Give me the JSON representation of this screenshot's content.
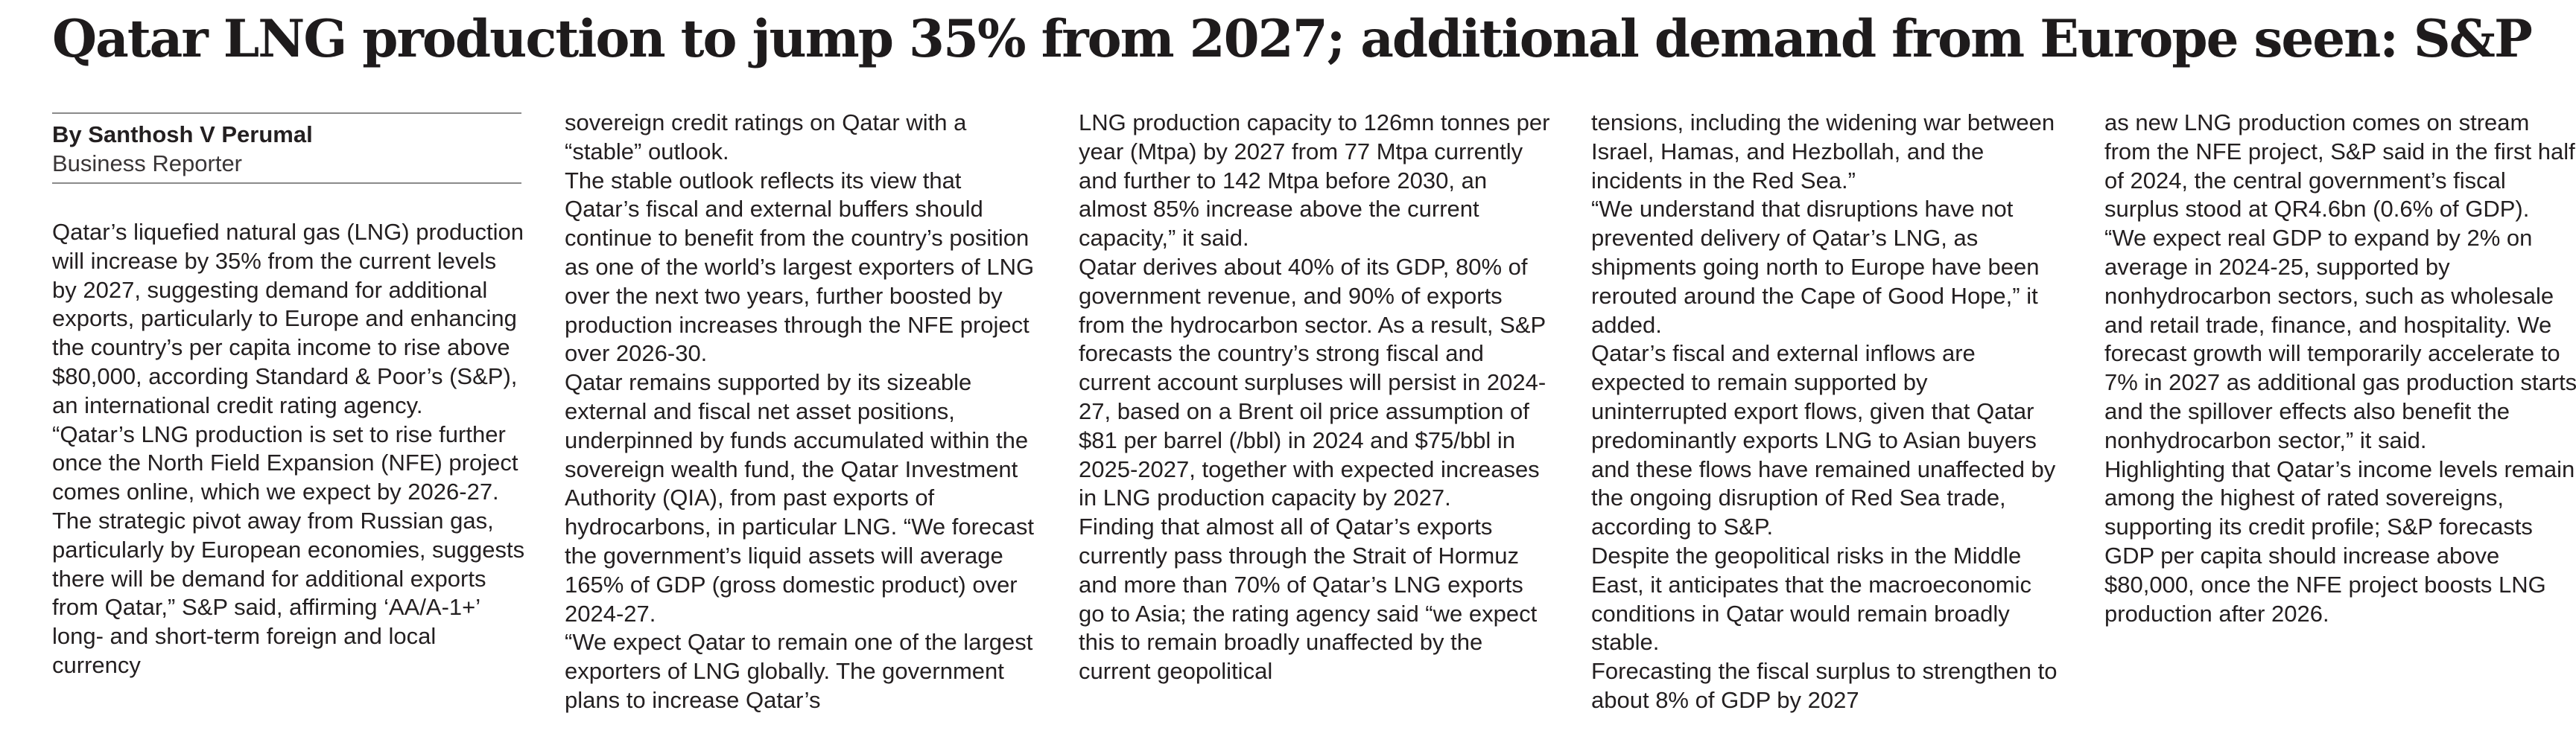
{
  "article": {
    "headline": "Qatar LNG production to jump 35% from 2027; additional demand from Europe seen: S&P",
    "byline": "By Santhosh V Perumal",
    "role": "Business Reporter",
    "columns": [
      [
        "Qatar’s liquefied natural gas (LNG) production will increase by 35% from the current levels by 2027, suggesting demand for additional exports, particularly to Europe and enhancing the country’s per capita income to rise above $80,000, according Standard & Poor’s (S&P), an international credit rating agency.",
        "“Qatar’s LNG production is set to rise further once the North Field Expansion (NFE) project comes online, which we expect by 2026-27. The strategic pivot away from Russian gas, particularly by European economies, suggests there will be demand for additional exports from Qatar,” S&P said, affirming ‘AA/A-1+’ long- and short-term foreign and local currency"
      ],
      [
        "sovereign credit ratings on Qatar with a “stable” outlook.",
        "The stable outlook reflects its view that Qatar’s fiscal and external buffers should continue to benefit from the country’s position as one of the world’s largest exporters of LNG over the next two years, further boosted by production increases through the NFE project over 2026-30.",
        "Qatar remains supported by its sizeable external and fiscal net asset positions, underpinned by funds accumulated within the sovereign wealth fund, the Qatar Investment Authority (QIA), from past exports of hydrocarbons, in particular LNG. “We forecast the government’s liquid assets will average 165% of GDP (gross domestic product) over 2024-27.",
        "“We expect Qatar to remain one of the largest exporters of LNG globally. The government plans to increase Qatar’s"
      ],
      [
        "LNG production capacity to 126mn tonnes per year (Mtpa) by 2027 from 77 Mtpa currently and further to 142 Mtpa before 2030, an almost 85% increase above the current capacity,” it said.",
        "Qatar derives about 40% of its GDP, 80% of government revenue, and 90% of exports from the hydrocarbon sector. As a result, S&P forecasts the country’s strong fiscal and current account surpluses will persist in 2024-27, based on a Brent oil price assumption of $81 per barrel (/bbl) in 2024 and $75/bbl in 2025-2027, together with expected increases in LNG production capacity by 2027.",
        "Finding that almost all of Qatar’s exports currently pass through the Strait of Hormuz and more than 70% of Qatar’s LNG exports go to Asia; the rating agency said “we expect this to remain broadly unaffected by the current geopolitical"
      ],
      [
        "tensions, including the widening war between Israel, Hamas, and Hezbollah, and the incidents in the Red Sea.”",
        "“We understand that disruptions have not prevented delivery of Qatar’s LNG, as shipments going north to Europe have been rerouted around the Cape of Good Hope,” it added.",
        "Qatar’s fiscal and external inflows are expected to remain supported by uninterrupted export flows, given that Qatar predominantly exports LNG to Asian buyers and these flows have remained unaffected by the ongoing disruption of Red Sea trade, according to S&P.",
        "Despite the geopolitical risks in the Middle East, it anticipates that the macroeconomic conditions in Qatar would remain broadly stable.",
        "Forecasting the fiscal surplus to strengthen to about 8% of GDP by 2027"
      ],
      [
        "as new LNG production comes on stream from the NFE project, S&P said in the first half of 2024, the central government’s fiscal surplus stood at QR4.6bn (0.6% of GDP).",
        "“We expect real GDP to expand by 2% on average in 2024-25, supported by nonhydrocarbon sectors, such as wholesale and retail trade, finance, and hospitality. We forecast growth will temporarily accelerate to 7% in 2027 as additional gas production starts and the spillover effects also benefit the nonhydrocarbon sector,” it said.",
        "Highlighting that Qatar’s income levels remain among the highest of rated sovereigns, supporting its credit profile; S&P forecasts GDP per capita should increase above $80,000, once the NFE project boosts LNG production after 2026."
      ]
    ]
  }
}
